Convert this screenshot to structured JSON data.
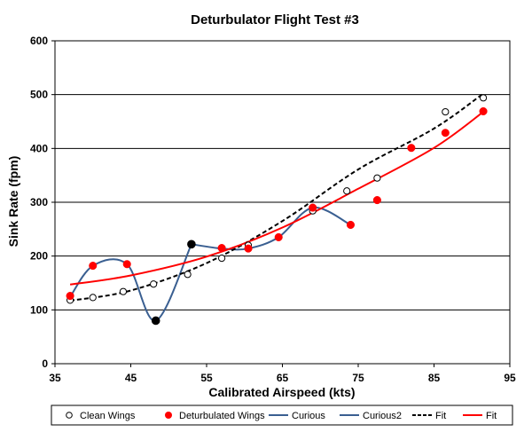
{
  "chart_data": {
    "type": "scatter",
    "title": "Deturbulator Flight Test #3",
    "xlabel": "Calibrated Airspeed  (kts)",
    "ylabel": "Sink Rate  (fpm)",
    "xlim": [
      35,
      95
    ],
    "ylim": [
      0,
      600
    ],
    "x_ticks": [
      "35",
      "45",
      "55",
      "65",
      "75",
      "85",
      "95"
    ],
    "y_ticks": [
      "0",
      "100",
      "200",
      "300",
      "400",
      "500",
      "600"
    ],
    "grid": "horizontal",
    "legend_position": "bottom",
    "series": [
      {
        "name": "Clean Wings",
        "kind": "markers",
        "marker": "open-circle",
        "color": "#000000",
        "points": [
          [
            37,
            118
          ],
          [
            40,
            123
          ],
          [
            44,
            134
          ],
          [
            48,
            148
          ],
          [
            52.5,
            166
          ],
          [
            57,
            196
          ],
          [
            60.5,
            220
          ],
          [
            69,
            284
          ],
          [
            73.5,
            321
          ],
          [
            77.5,
            345
          ],
          [
            86.5,
            468
          ],
          [
            91.5,
            494
          ]
        ]
      },
      {
        "name": "Deturbulated Wings",
        "kind": "markers",
        "marker": "filled-circle",
        "color": "#ff0000",
        "points": [
          [
            37,
            126
          ],
          [
            40,
            182
          ],
          [
            44.5,
            185
          ],
          [
            57,
            215
          ],
          [
            60.5,
            214
          ],
          [
            64.5,
            235
          ],
          [
            69,
            290
          ],
          [
            74,
            258
          ],
          [
            77.5,
            304
          ],
          [
            82,
            401
          ],
          [
            86.5,
            429
          ],
          [
            91.5,
            469
          ]
        ]
      },
      {
        "name": "Curious",
        "kind": "smooth-line-markers",
        "color": "#3a5f91",
        "marker_color": "#000000",
        "points": [
          [
            37,
            124
          ],
          [
            40,
            182
          ],
          [
            44.5,
            185
          ],
          [
            48.3,
            80
          ],
          [
            53,
            222
          ]
        ]
      },
      {
        "name": "Curious2",
        "kind": "smooth-line",
        "color": "#3a5f91",
        "points": [
          [
            53,
            222
          ],
          [
            57,
            214
          ],
          [
            60.5,
            214
          ],
          [
            64.5,
            235
          ],
          [
            69,
            290
          ],
          [
            74,
            258
          ]
        ]
      },
      {
        "name": "Fit",
        "kind": "dashed-curve",
        "color": "#000000",
        "points": [
          [
            37,
            117
          ],
          [
            45,
            136
          ],
          [
            55,
            187
          ],
          [
            65,
            265
          ],
          [
            75,
            361
          ],
          [
            85,
            437
          ],
          [
            91.5,
            502
          ]
        ]
      },
      {
        "name": "Fit",
        "kind": "solid-curve",
        "color": "#ff0000",
        "points": [
          [
            37,
            147
          ],
          [
            45,
            164
          ],
          [
            55,
            199
          ],
          [
            65,
            253
          ],
          [
            75,
            325
          ],
          [
            85,
            401
          ],
          [
            91.5,
            468
          ]
        ]
      }
    ]
  }
}
